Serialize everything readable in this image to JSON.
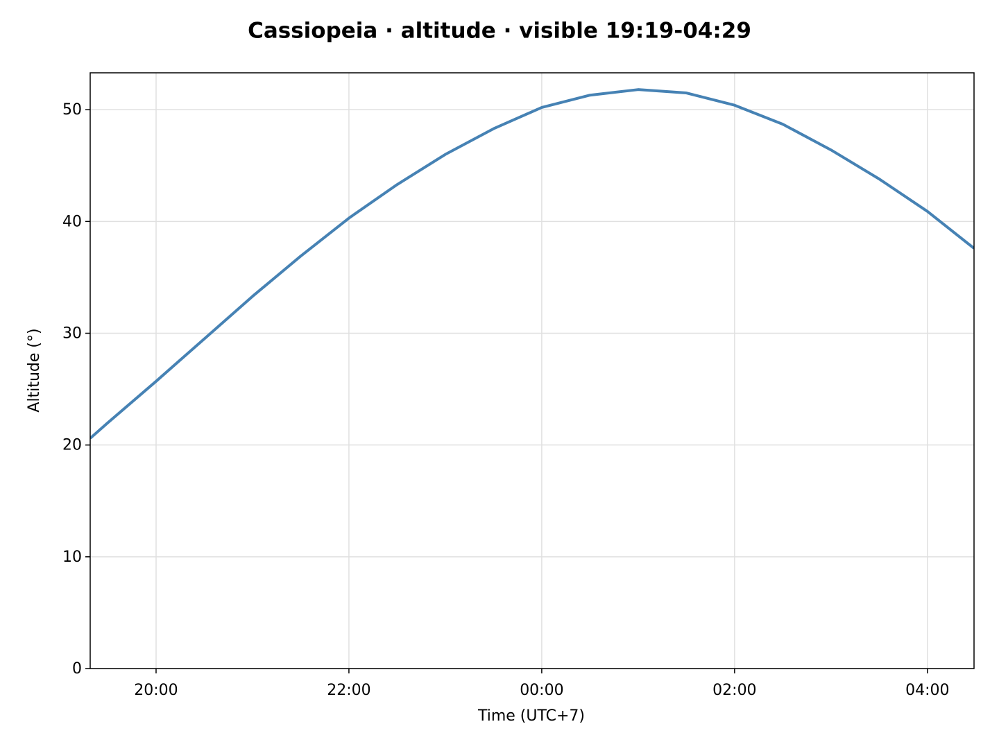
{
  "chart_data": {
    "type": "line",
    "title": "Cassiopeia · altitude · visible 19:19-04:29",
    "x_label": "Time (UTC+7)",
    "y_label": "Altitude (°)",
    "x": [
      "19:19",
      "19:30",
      "20:00",
      "20:30",
      "21:00",
      "21:30",
      "22:00",
      "22:30",
      "23:00",
      "23:30",
      "00:00",
      "00:30",
      "01:00",
      "01:30",
      "02:00",
      "02:30",
      "03:00",
      "03:30",
      "04:00",
      "04:29"
    ],
    "series": [
      {
        "name": "Cassiopeia",
        "color": "#4682b4",
        "values": [
          20.6,
          22.0,
          25.7,
          29.5,
          33.3,
          36.9,
          40.3,
          43.3,
          46.0,
          48.3,
          50.2,
          51.3,
          51.8,
          51.5,
          50.4,
          48.7,
          46.4,
          43.8,
          40.9,
          37.6
        ]
      }
    ],
    "xlim": [
      "19:19",
      "04:29"
    ],
    "xticks": [
      "20:00",
      "22:00",
      "00:00",
      "02:00",
      "04:00"
    ],
    "ylim": [
      0,
      53.3
    ],
    "yticks": [
      0,
      10,
      20,
      30,
      40,
      50
    ],
    "grid": true
  }
}
